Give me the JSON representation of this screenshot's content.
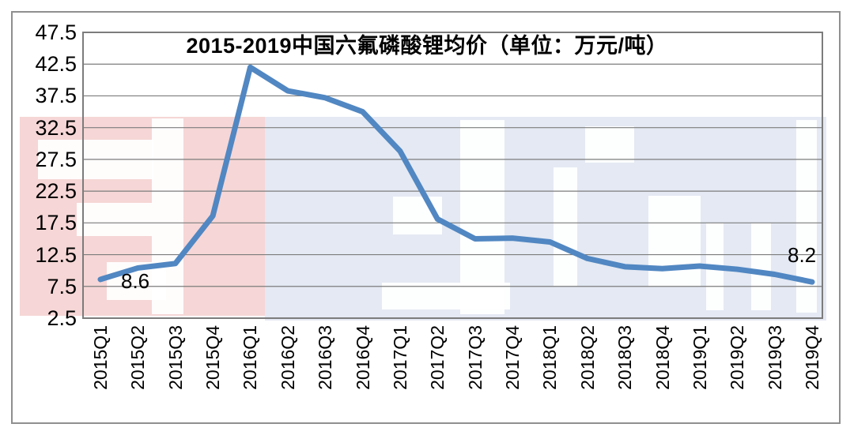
{
  "chart_data": {
    "type": "line",
    "title": "2015-2019中国六氟磷酸锂均价（单位：万元/吨）",
    "categories": [
      "2015Q1",
      "2015Q2",
      "2015Q3",
      "2015Q4",
      "2016Q1",
      "2016Q2",
      "2016Q3",
      "2016Q4",
      "2017Q1",
      "2017Q2",
      "2017Q3",
      "2017Q4",
      "2018Q1",
      "2018Q2",
      "2018Q3",
      "2018Q4",
      "2019Q1",
      "2019Q2",
      "2019Q3",
      "2019Q4"
    ],
    "values": [
      8.6,
      10.4,
      11.1,
      18.6,
      42.0,
      38.3,
      37.2,
      35.0,
      28.8,
      18.1,
      15.0,
      15.1,
      14.5,
      11.9,
      10.6,
      10.3,
      10.7,
      10.2,
      9.4,
      8.2
    ],
    "ylim": [
      2.5,
      47.5
    ],
    "ytick_step": 5,
    "yticks": [
      "2.5",
      "7.5",
      "12.5",
      "17.5",
      "22.5",
      "27.5",
      "32.5",
      "37.5",
      "42.5",
      "47.5"
    ],
    "grid": true,
    "legend": "none",
    "xlabel": "",
    "ylabel": "",
    "line_color": "#5187c2",
    "grid_color": "#7c7c7c",
    "frame_color": "#8f8f8f",
    "annotations": [
      {
        "text": "8.6",
        "category": "2015Q1",
        "position": "right"
      },
      {
        "text": "8.2",
        "category": "2019Q4",
        "position": "above"
      }
    ],
    "watermark_colors": {
      "pink": "#f6d6d6",
      "blue": "#e4e9f3"
    }
  }
}
